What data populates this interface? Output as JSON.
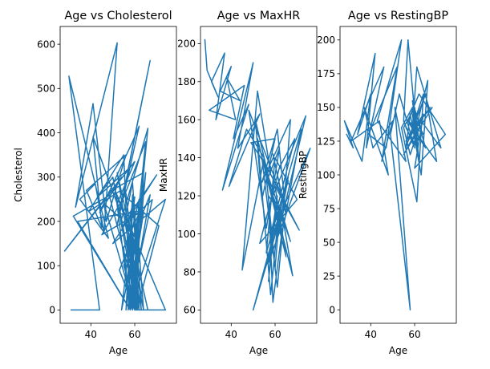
{
  "chart_data": [
    {
      "type": "line",
      "title": "Age vs Cholesterol",
      "xlabel": "Age",
      "ylabel": "Cholesterol",
      "xlim": [
        26,
        79
      ],
      "ylim": [
        -30,
        640
      ],
      "xticks": [
        40,
        60
      ],
      "yticks": [
        0,
        100,
        200,
        300,
        400,
        500,
        600
      ],
      "grid": false,
      "color": "#1f77b4",
      "series": [
        {
          "x": [
            31,
            44,
            30,
            48,
            35,
            42,
            46,
            52,
            33,
            41,
            47,
            56,
            38,
            45,
            41,
            52,
            60,
            28,
            54,
            49,
            32,
            58,
            51,
            44,
            59,
            62,
            52,
            67,
            57,
            43,
            50,
            61,
            71,
            53,
            39,
            55,
            58,
            66,
            54,
            46,
            60,
            64,
            48,
            62,
            53,
            65,
            57,
            68,
            55,
            59,
            63,
            56,
            61,
            70,
            50,
            74,
            58,
            34,
            64,
            45,
            56,
            62,
            52,
            66,
            57,
            60,
            54,
            61,
            65,
            59,
            63,
            55,
            58,
            67,
            53,
            60,
            74,
            51,
            62,
            57,
            64,
            56,
            59,
            62,
            55,
            61,
            58,
            63,
            60,
            57,
            62,
            59,
            56,
            61,
            64,
            58,
            60,
            62,
            57,
            59
          ],
          "y": [
            0,
            0,
            528,
            162,
            250,
            285,
            175,
            603,
            232,
            466,
            200,
            350,
            270,
            186,
            391,
            240,
            335,
            133,
            300,
            260,
            212,
            0,
            275,
            220,
            380,
            415,
            192,
            563,
            318,
            255,
            300,
            0,
            190,
            268,
            222,
            350,
            0,
            410,
            205,
            240,
            0,
            310,
            266,
            0,
            230,
            380,
            0,
            249,
            190,
            287,
            0,
            210,
            240,
            305,
            150,
            250,
            0,
            200,
            225,
            170,
            263,
            0,
            310,
            0,
            199,
            255,
            0,
            170,
            310,
            0,
            230,
            140,
            0,
            260,
            90,
            0,
            0,
            270,
            120,
            0,
            220,
            60,
            0,
            250,
            100,
            0,
            210,
            30,
            0,
            180,
            0,
            260,
            0,
            200,
            0,
            150,
            0,
            240,
            0,
            230
          ]
        }
      ]
    },
    {
      "type": "line",
      "title": "Age vs MaxHR",
      "xlabel": "Age",
      "ylabel": "MaxHR",
      "xlim": [
        26,
        79
      ],
      "ylim": [
        53,
        209
      ],
      "xticks": [
        40,
        60
      ],
      "yticks": [
        60,
        80,
        100,
        120,
        140,
        160,
        180,
        200
      ],
      "grid": false,
      "color": "#1f77b4",
      "series": [
        {
          "x": [
            28,
            29,
            34,
            31,
            37,
            33,
            40,
            35,
            44,
            38,
            42,
            30,
            46,
            41,
            48,
            36,
            50,
            43,
            53,
            39,
            47,
            55,
            45,
            52,
            58,
            49,
            60,
            54,
            51,
            57,
            62,
            56,
            48,
            63,
            59,
            65,
            61,
            54,
            67,
            64,
            50,
            66,
            58,
            69,
            62,
            53,
            70,
            60,
            56,
            72,
            64,
            59,
            74,
            61,
            66,
            57,
            76,
            63,
            68,
            55,
            71,
            60,
            65,
            52,
            58,
            62,
            67,
            54,
            61,
            64,
            57,
            59,
            63,
            56,
            60,
            62,
            58,
            61,
            57,
            59
          ],
          "y": [
            202,
            186,
            172,
            180,
            195,
            160,
            188,
            175,
            170,
            182,
            160,
            165,
            178,
            150,
            168,
            123,
            190,
            145,
            163,
            125,
            155,
            140,
            81,
            175,
            132,
            148,
            150,
            118,
            160,
            130,
            145,
            103,
            165,
            120,
            142,
            110,
            155,
            127,
            160,
            115,
            60,
            128,
            100,
            150,
            135,
            95,
            118,
            140,
            90,
            155,
            105,
            120,
            162,
            98,
            130,
            85,
            145,
            112,
            78,
            138,
            102,
            125,
            88,
            150,
            68,
            115,
            96,
            140,
            72,
            108,
            120,
            64,
            100,
            130,
            82,
            110,
            95,
            120,
            75,
            105
          ]
        }
      ]
    },
    {
      "type": "line",
      "title": "Age vs RestingBP",
      "xlabel": "Age",
      "ylabel": "RestingBP",
      "xlim": [
        26,
        79
      ],
      "ylim": [
        -10,
        210
      ],
      "xticks": [
        40,
        60
      ],
      "yticks": [
        0,
        25,
        50,
        75,
        100,
        125,
        150,
        175,
        200
      ],
      "grid": false,
      "color": "#1f77b4",
      "series": [
        {
          "x": [
            29,
            32,
            28,
            36,
            40,
            34,
            42,
            38,
            46,
            31,
            44,
            48,
            37,
            41,
            50,
            45,
            52,
            39,
            47,
            54,
            43,
            56,
            51,
            58,
            49,
            53,
            60,
            55,
            57,
            62,
            59,
            54,
            61,
            64,
            56,
            58,
            63,
            66,
            60,
            55,
            68,
            62,
            57,
            65,
            70,
            59,
            61,
            72,
            63,
            58,
            67,
            56,
            64,
            60,
            74,
            62,
            57,
            65,
            59,
            61,
            63,
            58,
            55,
            60,
            62,
            57,
            64,
            59,
            61,
            56
          ],
          "y": [
            130,
            120,
            140,
            110,
            160,
            130,
            190,
            120,
            180,
            125,
            140,
            100,
            150,
            120,
            140,
            110,
            180,
            130,
            120,
            200,
            140,
            110,
            150,
            0,
            130,
            160,
            120,
            140,
            200,
            110,
            150,
            135,
            80,
            160,
            120,
            145,
            100,
            170,
            130,
            115,
            150,
            140,
            125,
            160,
            110,
            135,
            180,
            120,
            140,
            130,
            150,
            125,
            145,
            105,
            130,
            160,
            140,
            120,
            155,
            130,
            140,
            115,
            135,
            150,
            125,
            140,
            130,
            145,
            120,
            135
          ]
        }
      ]
    }
  ]
}
